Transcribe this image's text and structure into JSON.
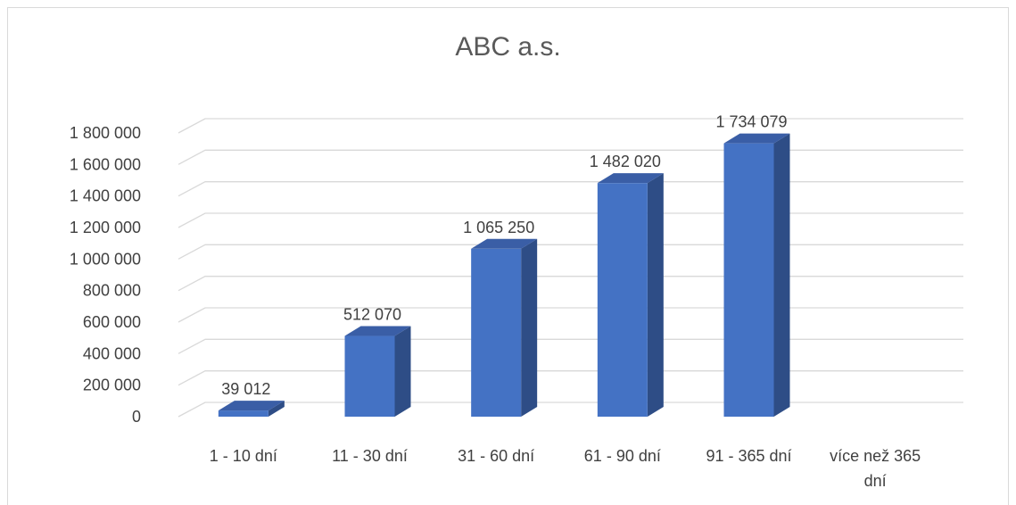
{
  "chart_data": {
    "type": "bar",
    "title": "ABC a.s.",
    "categories": [
      "1 - 10 dní",
      "11 - 30 dní",
      "31 - 60 dní",
      "61 - 90 dní",
      "91 - 365 dní",
      "více než 365 dní"
    ],
    "category_lines": [
      [
        "1 - 10 dní"
      ],
      [
        "11 - 30 dní"
      ],
      [
        "31 - 60 dní"
      ],
      [
        "61 - 90 dní"
      ],
      [
        "91 - 365 dní"
      ],
      [
        "více než 365",
        "dní"
      ]
    ],
    "values": [
      39012,
      512070,
      1065250,
      1482020,
      1734079,
      null
    ],
    "data_labels": [
      "39 012",
      "512 070",
      "1 065 250",
      "1 482 020",
      "1 734 079",
      ""
    ],
    "y_ticks": [
      0,
      200000,
      400000,
      600000,
      800000,
      1000000,
      1200000,
      1400000,
      1600000,
      1800000
    ],
    "y_tick_labels": [
      "0",
      "200 000",
      "400 000",
      "600 000",
      "800 000",
      "1 000 000",
      "1 200 000",
      "1 400 000",
      "1 600 000",
      "1 800 000"
    ],
    "ylim": [
      0,
      1800000
    ],
    "grid": true,
    "three_d": true,
    "xlabel": "",
    "ylabel": "",
    "colors": {
      "bar_front": "#4472c4",
      "bar_side": "#2e4d86",
      "bar_top": "#3a5ea6",
      "grid": "#d9d9d9",
      "text": "#404040",
      "title": "#595959"
    }
  }
}
